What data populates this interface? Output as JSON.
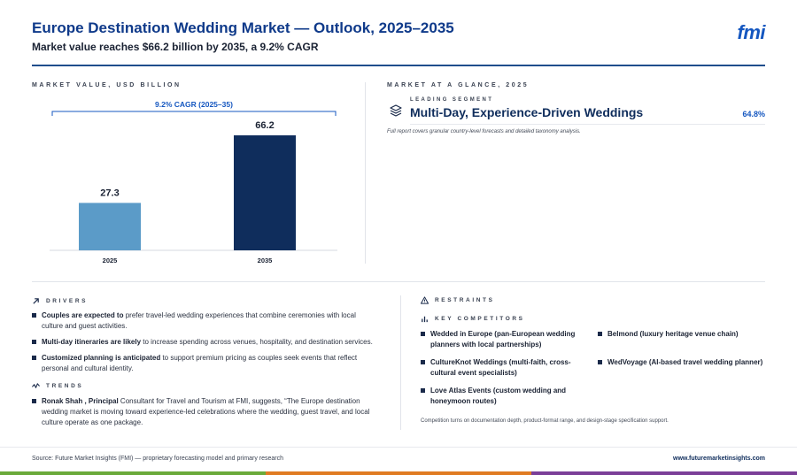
{
  "header": {
    "title": "Europe Destination Wedding Market — Outlook, 2025–2035",
    "subtitle": "Market value reaches $66.2 billion by 2035, a 9.2% CAGR",
    "logo_text": "fmi"
  },
  "sections": {
    "market_value": "MARKET VALUE, USD BILLION",
    "glance": "MARKET AT A GLANCE, 2025",
    "drivers": "DRIVERS",
    "trends": "TRENDS",
    "restraints": "RESTRAINTS",
    "competitors": "KEY COMPETITORS"
  },
  "chart_data": {
    "type": "bar",
    "title": "",
    "categories": [
      "2025",
      "2035"
    ],
    "values": [
      27.3,
      66.2
    ],
    "value_labels": [
      "27.3",
      "66.2"
    ],
    "annotation": "9.2% CAGR (2025–35)",
    "colors": [
      "#5b9bc8",
      "#0f2d5c"
    ],
    "ylim": [
      0,
      66.2
    ],
    "grid": false,
    "legend": "none"
  },
  "glance": {
    "leading_label": "LEADING SEGMENT",
    "leading_name": "Multi-Day, Experience-Driven Weddings",
    "leading_share": "64.8%",
    "note": "Full report covers granular country-level forecasts and detailed taxonomy analysis."
  },
  "drivers": [
    {
      "bold": "Couples are expected to",
      "text": " prefer travel-led wedding experiences that combine ceremonies with local culture and guest activities."
    },
    {
      "bold": "Multi-day itineraries are likely",
      "text": " to increase spending across venues, hospitality, and destination services."
    },
    {
      "bold": "Customized planning is anticipated",
      "text": " to support premium pricing as couples seek events that reflect personal and cultural identity."
    }
  ],
  "trends": [
    {
      "bold": "Ronak Shah , Principal",
      "text": " Consultant for Travel and Tourism at FMI, suggests, “The Europe destination wedding market is moving toward experience-led celebrations where the wedding, guest travel, and local culture operate as one package."
    }
  ],
  "competitors": [
    "Wedded in Europe (pan-European wedding planners with local partnerships)",
    "Belmond (luxury heritage venue chain)",
    "CultureKnot Weddings (multi-faith, cross-cultural event specialists)",
    "WedVoyage (AI-based travel wedding planner)",
    "Love Atlas Events (custom wedding and honeymoon routes)"
  ],
  "competitors_note": "Competition turns on documentation depth, product-format range, and design-stage specification support.",
  "footer": {
    "source": "Source: Future Market Insights (FMI) — proprietary forecasting model and primary research",
    "website": "www.futuremarketinsights.com"
  },
  "theme": {
    "accent": "#1557c0",
    "footer_bar": [
      "#6aaa3a",
      "#e07b22",
      "#7b3f98"
    ]
  }
}
